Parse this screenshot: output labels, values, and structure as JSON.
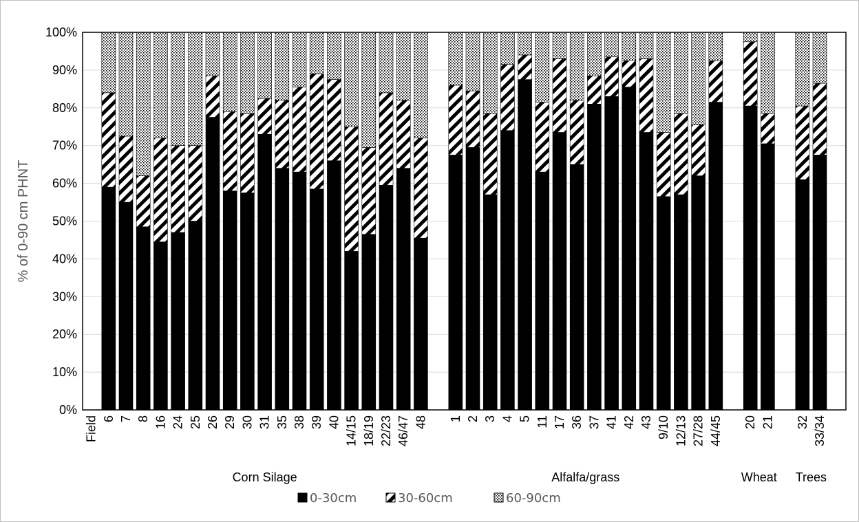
{
  "chart_data": {
    "type": "bar",
    "stacked": true,
    "ylabel": "% of 0-90 cm PHNT",
    "ylim": [
      0,
      100
    ],
    "yticks": [
      "0%",
      "10%",
      "20%",
      "30%",
      "40%",
      "50%",
      "60%",
      "70%",
      "80%",
      "90%",
      "100%"
    ],
    "grid": true,
    "x_header": "Field",
    "legend_position": "bottom",
    "categories": [
      "6",
      "7",
      "8",
      "16",
      "24",
      "25",
      "26",
      "29",
      "30",
      "31",
      "35",
      "38",
      "39",
      "40",
      "14/15",
      "18/19",
      "22/23",
      "46/47",
      "48",
      "1",
      "2",
      "3",
      "4",
      "5",
      "11",
      "17",
      "36",
      "37",
      "41",
      "42",
      "43",
      "9/10",
      "12/13",
      "27/28",
      "44/45",
      "20",
      "21",
      "32",
      "33/34"
    ],
    "groups": [
      {
        "label": "Corn Silage",
        "count": 19
      },
      {
        "label": "Alfalfa/grass",
        "count": 16
      },
      {
        "label": "Wheat",
        "count": 2
      },
      {
        "label": "Trees",
        "count": 2
      }
    ],
    "series": [
      {
        "name": "0-30cm",
        "fill": "#000000",
        "values": [
          59,
          55,
          48.5,
          44.5,
          47,
          50,
          77.5,
          58,
          57.5,
          73,
          64,
          63,
          58.5,
          66,
          42,
          46.5,
          59.5,
          64,
          45.5,
          67.5,
          69.5,
          57,
          74,
          87.5,
          63,
          73.5,
          65,
          81,
          83,
          85.5,
          73.5,
          56.5,
          57,
          62,
          81.5,
          80.5,
          70.5,
          61,
          67.5
        ]
      },
      {
        "name": "30-60cm",
        "fill": "diagonal",
        "values": [
          25,
          17.5,
          13.5,
          27.5,
          23,
          20,
          11,
          21,
          21,
          9.5,
          18,
          22.5,
          30.5,
          21.5,
          33,
          23,
          24.5,
          18,
          26.5,
          18.5,
          15,
          21.5,
          17.5,
          6.5,
          18.5,
          19.5,
          17,
          7.5,
          10.5,
          7,
          19.5,
          17,
          21.5,
          13.5,
          11,
          17,
          8,
          19.5,
          19
        ]
      },
      {
        "name": "60-90cm",
        "fill": "dotted",
        "values": [
          16,
          27.5,
          38,
          28,
          30,
          30,
          11.5,
          21,
          21.5,
          17.5,
          18,
          14.5,
          11,
          12.5,
          25,
          30.5,
          16,
          18,
          28,
          14,
          15.5,
          21.5,
          8.5,
          6,
          18.5,
          7,
          18,
          11.5,
          6.5,
          7.5,
          7,
          26.5,
          21.5,
          24.5,
          7.5,
          2.5,
          21.5,
          19.5,
          13.5
        ]
      }
    ]
  }
}
